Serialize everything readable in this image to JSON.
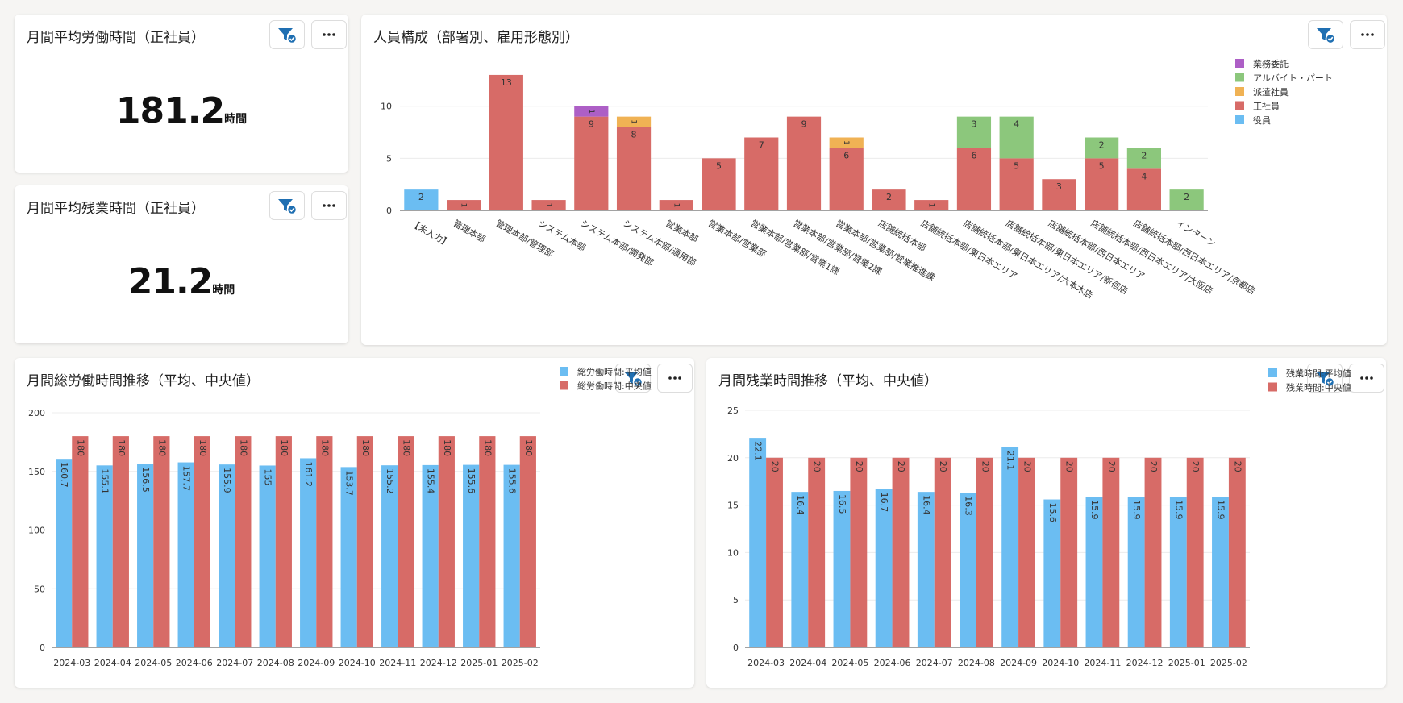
{
  "kpi_work": {
    "title": "月間平均労働時間（正社員）",
    "value": "181.2",
    "unit": "時間"
  },
  "kpi_overtime": {
    "title": "月間平均残業時間（正社員）",
    "value": "21.2",
    "unit": "時間"
  },
  "composition": {
    "title": "人員構成（部署別、雇用形態別）"
  },
  "work_trend": {
    "title": "月間総労働時間推移（平均、中央値）"
  },
  "overtime_trend": {
    "title": "月間残業時間推移（平均、中央値）"
  },
  "colors": {
    "blue": "#6bbdf2",
    "red": "#d76b67",
    "green": "#8cc77c",
    "orange": "#f0b254",
    "purple": "#ad5fc6",
    "filter_icon": "#1f6fb2"
  },
  "icons": {
    "filter": "filter-check-icon",
    "more": "more-dots-icon"
  },
  "chart_data": [
    {
      "type": "bar",
      "stacked": true,
      "categories": [
        "【未入力】",
        "管理本部",
        "管理本部/管理部",
        "システム本部",
        "システム本部/開発部",
        "システム本部/運用部",
        "営業本部",
        "営業本部/営業部",
        "営業本部/営業部/営業1課",
        "営業本部/営業部/営業2課",
        "営業本部/営業部/営業推進課",
        "店舗統括本部",
        "店舗統括本部/東日本エリア",
        "店舗統括本部/東日本エリア/六本木店",
        "店舗統括本部/東日本エリア/新宿店",
        "店舗統括本部/西日本エリア",
        "店舗統括本部/西日本エリア/大阪店",
        "店舗統括本部/西日本エリア/京都店",
        "インターン"
      ],
      "series": [
        {
          "name": "役員",
          "color": "#6bbdf2",
          "values": [
            2,
            0,
            0,
            0,
            0,
            0,
            0,
            0,
            0,
            0,
            0,
            0,
            0,
            0,
            0,
            0,
            0,
            0,
            0
          ]
        },
        {
          "name": "正社員",
          "color": "#d76b67",
          "values": [
            0,
            1,
            13,
            1,
            9,
            8,
            1,
            5,
            7,
            9,
            6,
            2,
            1,
            6,
            5,
            3,
            5,
            4,
            0
          ]
        },
        {
          "name": "派遣社員",
          "color": "#f0b254",
          "values": [
            0,
            0,
            0,
            0,
            0,
            1,
            0,
            0,
            0,
            0,
            1,
            0,
            0,
            0,
            0,
            0,
            0,
            0,
            0
          ]
        },
        {
          "name": "アルバイト・パート",
          "color": "#8cc77c",
          "values": [
            0,
            0,
            0,
            0,
            0,
            0,
            0,
            0,
            0,
            0,
            0,
            0,
            0,
            3,
            4,
            0,
            2,
            2,
            2
          ]
        },
        {
          "name": "業務委託",
          "color": "#ad5fc6",
          "values": [
            0,
            0,
            0,
            0,
            1,
            0,
            0,
            0,
            0,
            0,
            0,
            0,
            0,
            0,
            0,
            0,
            0,
            0,
            0
          ]
        }
      ],
      "legend_order": [
        "業務委託",
        "アルバイト・パート",
        "派遣社員",
        "正社員",
        "役員"
      ],
      "ylim": [
        0,
        14
      ],
      "yticks": [
        0,
        5,
        10
      ],
      "legend": "top-right",
      "grid": true
    },
    {
      "type": "bar",
      "categories": [
        "2024-03",
        "2024-04",
        "2024-05",
        "2024-06",
        "2024-07",
        "2024-08",
        "2024-09",
        "2024-10",
        "2024-11",
        "2024-12",
        "2025-01",
        "2025-02"
      ],
      "series": [
        {
          "name": "総労働時間:平均値",
          "color": "#6bbdf2",
          "values": [
            160.7,
            155.1,
            156.5,
            157.7,
            155.9,
            155,
            161.2,
            153.7,
            155.2,
            155.4,
            155.6,
            155.6
          ]
        },
        {
          "name": "総労働時間:中央値",
          "color": "#d76b67",
          "values": [
            180,
            180,
            180,
            180,
            180,
            180,
            180,
            180,
            180,
            180,
            180,
            180
          ]
        }
      ],
      "ylim": [
        0,
        200
      ],
      "yticks": [
        0,
        50,
        100,
        150,
        200
      ],
      "legend": "top-right",
      "grid": true
    },
    {
      "type": "bar",
      "categories": [
        "2024-03",
        "2024-04",
        "2024-05",
        "2024-06",
        "2024-07",
        "2024-08",
        "2024-09",
        "2024-10",
        "2024-11",
        "2024-12",
        "2025-01",
        "2025-02"
      ],
      "series": [
        {
          "name": "残業時間:平均値",
          "color": "#6bbdf2",
          "values": [
            22.1,
            16.4,
            16.5,
            16.7,
            16.4,
            16.3,
            21.1,
            15.6,
            15.9,
            15.9,
            15.9,
            15.9
          ]
        },
        {
          "name": "残業時間:中央値",
          "color": "#d76b67",
          "values": [
            20,
            20,
            20,
            20,
            20,
            20,
            20,
            20,
            20,
            20,
            20,
            20
          ]
        }
      ],
      "ylim": [
        0,
        25
      ],
      "yticks": [
        0,
        5,
        10,
        15,
        20,
        25
      ],
      "legend": "top-right",
      "grid": true
    }
  ]
}
